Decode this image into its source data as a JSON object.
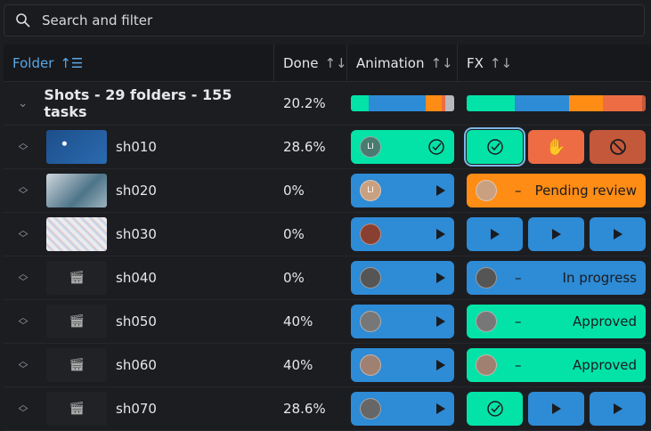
{
  "search": {
    "placeholder": "Search and filter",
    "icon": "search-icon"
  },
  "columns": [
    {
      "label": "Folder",
      "active": true,
      "icon": "sort-asc-icon"
    },
    {
      "label": "Done",
      "icon": "sort-icon"
    },
    {
      "label": "Animation",
      "icon": "sort-icon"
    },
    {
      "label": "FX",
      "icon": "sort-icon"
    }
  ],
  "colors": {
    "approved": "#03e3a8",
    "in_progress": "#2e8bd6",
    "pending": "#ff8c14",
    "on_hold": "#ee6c44",
    "blocked": "#c4583a",
    "not_ready": "#b8b9bc",
    "accent": "#5aa7e6"
  },
  "group": {
    "label": "Shots - 29 folders - 155 tasks",
    "done": "20.2%",
    "animation_bar": [
      {
        "status": "approved",
        "fraction": 0.17
      },
      {
        "status": "in_progress",
        "fraction": 0.55
      },
      {
        "status": "pending",
        "fraction": 0.16
      },
      {
        "status": "on_hold",
        "fraction": 0.03
      },
      {
        "status": "not_ready",
        "fraction": 0.09
      }
    ],
    "fx_bar": [
      {
        "status": "approved",
        "fraction": 0.27
      },
      {
        "status": "in_progress",
        "fraction": 0.3
      },
      {
        "status": "pending",
        "fraction": 0.19
      },
      {
        "status": "on_hold",
        "fraction": 0.22
      },
      {
        "status": "blocked",
        "fraction": 0.02
      }
    ]
  },
  "rows": [
    {
      "name": "sh010",
      "done": "28.6%",
      "thumb": "image",
      "animation": {
        "status": "approved",
        "avatar": "LI",
        "icon": "check-circle-icon"
      },
      "fx": [
        {
          "status": "approved",
          "icon": "check-circle-icon",
          "selected": true
        },
        {
          "status": "on_hold",
          "icon": "hand-icon"
        },
        {
          "status": "blocked",
          "icon": "blocked-icon"
        }
      ]
    },
    {
      "name": "sh020",
      "done": "0%",
      "thumb": "image",
      "animation": {
        "status": "in_progress",
        "avatar": "LI",
        "icon": "play-icon"
      },
      "fx": [
        {
          "status": "pending",
          "avatar": "",
          "label": "Pending review"
        }
      ]
    },
    {
      "name": "sh030",
      "done": "0%",
      "thumb": "image",
      "animation": {
        "status": "in_progress",
        "avatar": "",
        "icon": "play-icon"
      },
      "fx": [
        {
          "status": "in_progress",
          "icon": "play-icon"
        },
        {
          "status": "in_progress",
          "icon": "play-icon"
        },
        {
          "status": "in_progress",
          "icon": "play-icon"
        }
      ]
    },
    {
      "name": "sh040",
      "done": "0%",
      "thumb": "placeholder",
      "animation": {
        "status": "in_progress",
        "avatar": "",
        "icon": "play-icon"
      },
      "fx": [
        {
          "status": "in_progress",
          "avatar": "",
          "label": "In progress"
        }
      ]
    },
    {
      "name": "sh050",
      "done": "40%",
      "thumb": "placeholder",
      "animation": {
        "status": "in_progress",
        "avatar": "",
        "icon": "play-icon"
      },
      "fx": [
        {
          "status": "approved",
          "avatar": "",
          "label": "Approved"
        }
      ]
    },
    {
      "name": "sh060",
      "done": "40%",
      "thumb": "placeholder",
      "animation": {
        "status": "in_progress",
        "avatar": "",
        "icon": "play-icon"
      },
      "fx": [
        {
          "status": "approved",
          "avatar": "",
          "label": "Approved"
        }
      ]
    },
    {
      "name": "sh070",
      "done": "28.6%",
      "thumb": "placeholder",
      "animation": {
        "status": "in_progress",
        "avatar": "",
        "icon": "play-icon"
      },
      "fx": [
        {
          "status": "approved",
          "icon": "check-circle-icon"
        },
        {
          "status": "in_progress",
          "icon": "play-icon"
        },
        {
          "status": "in_progress",
          "icon": "play-icon"
        }
      ]
    }
  ]
}
